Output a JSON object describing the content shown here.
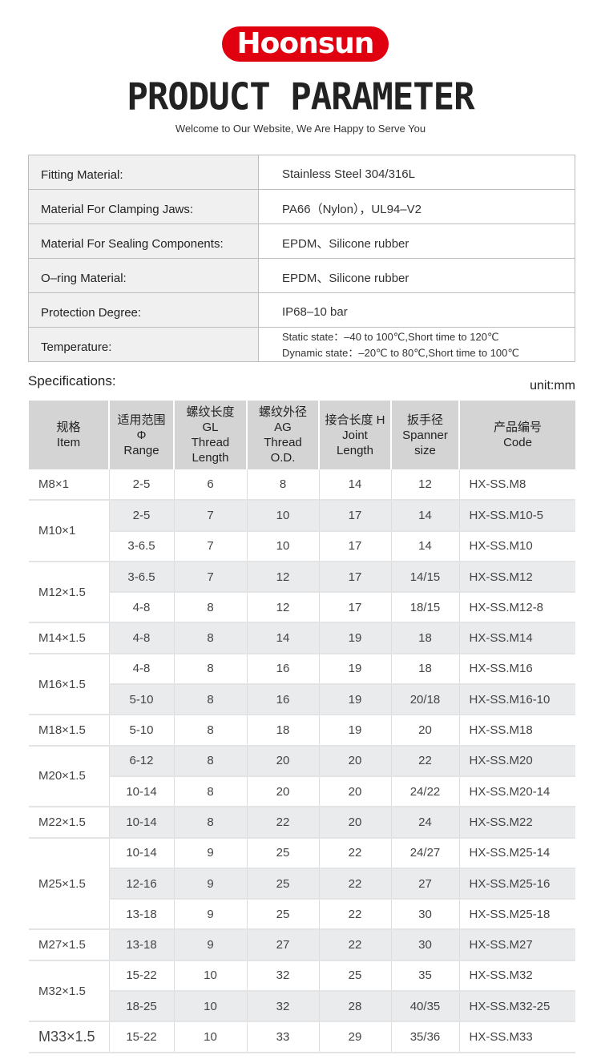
{
  "brand": {
    "logo_text": "Hoonsun",
    "color": "#e0000f"
  },
  "header": {
    "title": "PRODUCT PARAMETER",
    "subtitle": "Welcome to Our Website, We Are Happy to Serve You"
  },
  "parameters": [
    {
      "label": "Fitting Material:",
      "value": [
        "Stainless Steel 304/316L"
      ]
    },
    {
      "label": "Material For Clamping Jaws:",
      "value": [
        "PA66（Nylon），UL94–V2"
      ]
    },
    {
      "label": "Material For Sealing Components:",
      "value": [
        "EPDM、Silicone rubber"
      ]
    },
    {
      "label": "O–ring Material:",
      "value": [
        "EPDM、Silicone rubber"
      ]
    },
    {
      "label": "Protection Degree:",
      "value": [
        "IP68–10 bar"
      ]
    },
    {
      "label": "Temperature:",
      "value": [
        "Static state：–40 to 100℃,Short time to 120℃",
        "Dynamic state：–20℃ to 80℃,Short time to 100℃"
      ]
    }
  ],
  "specifications": {
    "label": "Specifications:",
    "unit": "unit:mm",
    "headers": [
      [
        "规格",
        "Item"
      ],
      [
        "适用范围",
        "Φ",
        "Range"
      ],
      [
        "螺纹长度",
        "GL",
        "Thread",
        "Length"
      ],
      [
        "螺纹外径",
        "AG",
        "Thread",
        "O.D."
      ],
      [
        "接合长度 H",
        "Joint",
        "Length"
      ],
      [
        "扳手径",
        "Spanner",
        "size"
      ],
      [
        "产品编号",
        "Code"
      ]
    ],
    "groups": [
      {
        "item": "M8×1",
        "rows": [
          [
            "2-5",
            "6",
            "8",
            "14",
            "12",
            "HX-SS.M8"
          ]
        ]
      },
      {
        "item": "M10×1",
        "rows": [
          [
            "2-5",
            "7",
            "10",
            "17",
            "14",
            "HX-SS.M10-5"
          ],
          [
            "3-6.5",
            "7",
            "10",
            "17",
            "14",
            "HX-SS.M10"
          ]
        ]
      },
      {
        "item": "M12×1.5",
        "rows": [
          [
            "3-6.5",
            "7",
            "12",
            "17",
            "14/15",
            "HX-SS.M12"
          ],
          [
            "4-8",
            "8",
            "12",
            "17",
            "18/15",
            "HX-SS.M12-8"
          ]
        ]
      },
      {
        "item": "M14×1.5",
        "rows": [
          [
            "4-8",
            "8",
            "14",
            "19",
            "18",
            "HX-SS.M14"
          ]
        ]
      },
      {
        "item": "M16×1.5",
        "rows": [
          [
            "4-8",
            "8",
            "16",
            "19",
            "18",
            "HX-SS.M16"
          ],
          [
            "5-10",
            "8",
            "16",
            "19",
            "20/18",
            "HX-SS.M16-10"
          ]
        ]
      },
      {
        "item": "M18×1.5",
        "rows": [
          [
            "5-10",
            "8",
            "18",
            "19",
            "20",
            "HX-SS.M18"
          ]
        ]
      },
      {
        "item": "M20×1.5",
        "rows": [
          [
            "6-12",
            "8",
            "20",
            "20",
            "22",
            "HX-SS.M20"
          ],
          [
            "10-14",
            "8",
            "20",
            "20",
            "24/22",
            "HX-SS.M20-14"
          ]
        ]
      },
      {
        "item": "M22×1.5",
        "rows": [
          [
            "10-14",
            "8",
            "22",
            "20",
            "24",
            "HX-SS.M22"
          ]
        ]
      },
      {
        "item": "M25×1.5",
        "rows": [
          [
            "10-14",
            "9",
            "25",
            "22",
            "24/27",
            "HX-SS.M25-14"
          ],
          [
            "12-16",
            "9",
            "25",
            "22",
            "27",
            "HX-SS.M25-16"
          ],
          [
            "13-18",
            "9",
            "25",
            "22",
            "30",
            "HX-SS.M25-18"
          ]
        ]
      },
      {
        "item": "M27×1.5",
        "rows": [
          [
            "13-18",
            "9",
            "27",
            "22",
            "30",
            "HX-SS.M27"
          ]
        ]
      },
      {
        "item": "M32×1.5",
        "rows": [
          [
            "15-22",
            "10",
            "32",
            "25",
            "35",
            "HX-SS.M32"
          ],
          [
            "18-25",
            "10",
            "32",
            "28",
            "40/35",
            "HX-SS.M32-25"
          ]
        ]
      },
      {
        "item": "M33×1.5",
        "rows": [
          [
            "15-22",
            "10",
            "33",
            "29",
            "35/36",
            "HX-SS.M33"
          ]
        ]
      }
    ]
  }
}
